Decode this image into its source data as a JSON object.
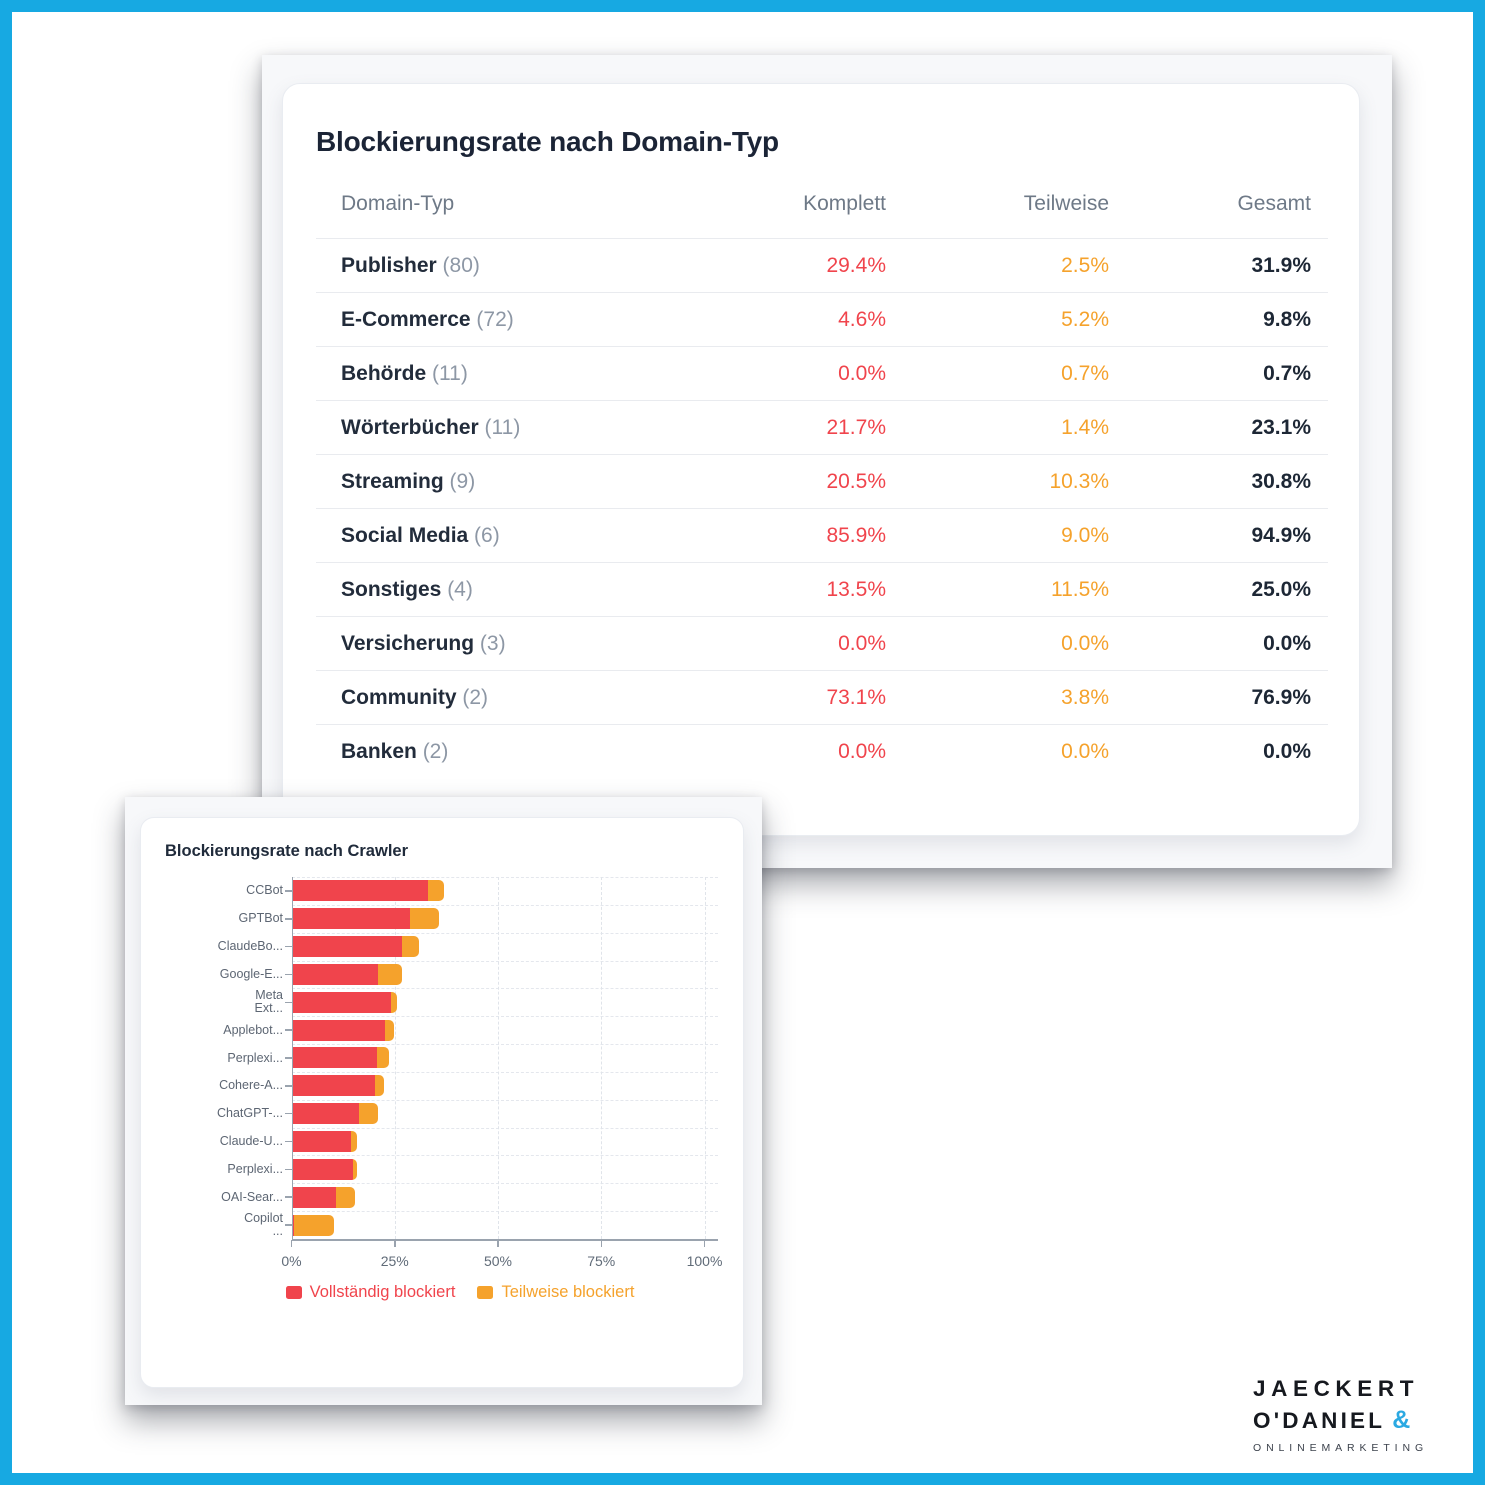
{
  "frame": {
    "border_color": "#17A9E2"
  },
  "table_card": {
    "title": "Blockierungsrate nach Domain-Typ",
    "columns": [
      "Domain-Typ",
      "Komplett",
      "Teilweise",
      "Gesamt"
    ],
    "colors": {
      "komplett": "#F0444C",
      "teilweise": "#F5A22C",
      "gesamt": "#1D2735"
    },
    "rows": [
      {
        "label": "Publisher",
        "count": "(80)",
        "komplett": "29.4%",
        "teilweise": "2.5%",
        "gesamt": "31.9%"
      },
      {
        "label": "E-Commerce",
        "count": "(72)",
        "komplett": "4.6%",
        "teilweise": "5.2%",
        "gesamt": "9.8%"
      },
      {
        "label": "Behörde",
        "count": "(11)",
        "komplett": "0.0%",
        "teilweise": "0.7%",
        "gesamt": "0.7%"
      },
      {
        "label": "Wörterbücher",
        "count": "(11)",
        "komplett": "21.7%",
        "teilweise": "1.4%",
        "gesamt": "23.1%"
      },
      {
        "label": "Streaming",
        "count": "(9)",
        "komplett": "20.5%",
        "teilweise": "10.3%",
        "gesamt": "30.8%"
      },
      {
        "label": "Social Media",
        "count": "(6)",
        "komplett": "85.9%",
        "teilweise": "9.0%",
        "gesamt": "94.9%"
      },
      {
        "label": "Sonstiges",
        "count": "(4)",
        "komplett": "13.5%",
        "teilweise": "11.5%",
        "gesamt": "25.0%"
      },
      {
        "label": "Versicherung",
        "count": "(3)",
        "komplett": "0.0%",
        "teilweise": "0.0%",
        "gesamt": "0.0%"
      },
      {
        "label": "Community",
        "count": "(2)",
        "komplett": "73.1%",
        "teilweise": "3.8%",
        "gesamt": "76.9%"
      },
      {
        "label": "Banken",
        "count": "(2)",
        "komplett": "0.0%",
        "teilweise": "0.0%",
        "gesamt": "0.0%"
      }
    ]
  },
  "chart_data": {
    "type": "bar",
    "orientation": "horizontal",
    "stacked": true,
    "title": "Blockierungsrate nach Crawler",
    "categories": [
      "CCBot",
      "GPTBot",
      "ClaudeBo...",
      "Google-E...",
      "Meta\nExt...",
      "Applebot...",
      "Perplexi...",
      "Cohere-A...",
      "ChatGPT-...",
      "Claude-U...",
      "Perplexi...",
      "OAI-Sear...",
      "Copilot\n..."
    ],
    "series": [
      {
        "name": "Vollständig blockiert",
        "color": "#F0444C",
        "values": [
          32.6,
          28.3,
          26.3,
          20.7,
          23.7,
          22.2,
          20.4,
          19.9,
          15.9,
          14.0,
          14.6,
          10.5,
          0.3
        ]
      },
      {
        "name": "Teilweise blockiert",
        "color": "#F5A22C",
        "values": [
          3.9,
          7.1,
          4.2,
          5.8,
          1.4,
          2.2,
          2.8,
          2.2,
          4.8,
          1.6,
          0.9,
          4.4,
          9.7
        ]
      }
    ],
    "x_ticks": [
      "0%",
      "25%",
      "50%",
      "75%",
      "100%"
    ],
    "xlim": [
      0,
      100
    ],
    "grid": "dashed",
    "legend_position": "bottom"
  },
  "logo": {
    "line1": "JAECKERT",
    "line2": "O'DANIEL",
    "symbol": "&",
    "line3": "ONLINEMARKETING",
    "accent_color": "#2BA9E2"
  }
}
